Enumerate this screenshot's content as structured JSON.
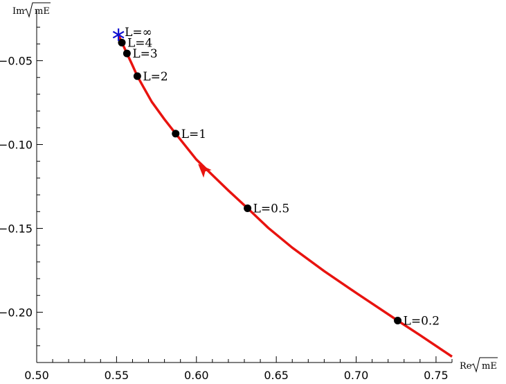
{
  "chart_data": {
    "type": "line",
    "xlabel": {
      "prefix": "Re",
      "radicand": "mE"
    },
    "ylabel": {
      "prefix": "Im",
      "radicand": "mE"
    },
    "xlim": [
      0.5,
      0.76
    ],
    "ylim": [
      -0.23,
      -0.02
    ],
    "xticks": [
      0.5,
      0.55,
      0.6,
      0.65,
      0.7,
      0.75
    ],
    "xtick_labels": [
      "0.50",
      "0.55",
      "0.60",
      "0.65",
      "0.70",
      "0.75"
    ],
    "yticks": [
      -0.05,
      -0.1,
      -0.15,
      -0.2
    ],
    "ytick_labels": [
      "−0.05",
      "−0.10",
      "−0.15",
      "−0.20"
    ],
    "curve_color": "#e8130f",
    "limit_marker_color": "#1010d0",
    "curve": [
      [
        0.76,
        -0.2265
      ],
      [
        0.74,
        -0.2137
      ],
      [
        0.726,
        -0.205
      ],
      [
        0.7,
        -0.1885
      ],
      [
        0.68,
        -0.1755
      ],
      [
        0.66,
        -0.1615
      ],
      [
        0.645,
        -0.1497
      ],
      [
        0.632,
        -0.138
      ],
      [
        0.62,
        -0.1274
      ],
      [
        0.6,
        -0.109
      ],
      [
        0.587,
        -0.0935
      ],
      [
        0.58,
        -0.085
      ],
      [
        0.572,
        -0.0745
      ],
      [
        0.567,
        -0.066
      ],
      [
        0.563,
        -0.0592
      ],
      [
        0.5595,
        -0.0518
      ],
      [
        0.5565,
        -0.0457
      ],
      [
        0.5548,
        -0.0422
      ],
      [
        0.5533,
        -0.0392
      ],
      [
        0.5512,
        -0.0345
      ]
    ],
    "direction_arrow": {
      "at": [
        0.604,
        -0.1145
      ],
      "towards": [
        0.598,
        -0.1085
      ]
    },
    "points": [
      {
        "label": "L=0.2",
        "x": 0.726,
        "y": -0.205
      },
      {
        "label": "L=0.5",
        "x": 0.632,
        "y": -0.138
      },
      {
        "label": "L=1",
        "x": 0.587,
        "y": -0.0935
      },
      {
        "label": "L=2",
        "x": 0.563,
        "y": -0.0592
      },
      {
        "label": "L=3",
        "x": 0.5565,
        "y": -0.0457
      },
      {
        "label": "L=4",
        "x": 0.5533,
        "y": -0.0392
      }
    ],
    "limit_point": {
      "label": "L=∞",
      "x": 0.5512,
      "y": -0.0345
    }
  }
}
